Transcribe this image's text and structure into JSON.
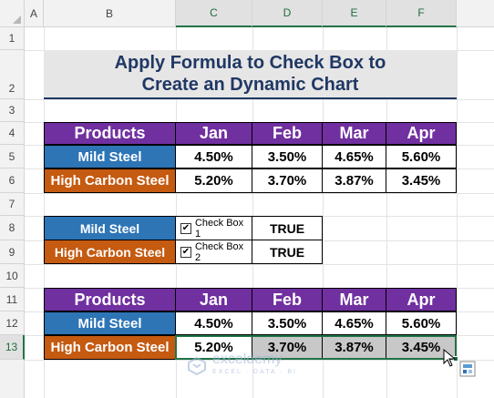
{
  "columns": [
    "A",
    "B",
    "C",
    "D",
    "E",
    "F"
  ],
  "rows": [
    "1",
    "2",
    "3",
    "4",
    "5",
    "6",
    "7",
    "8",
    "9",
    "10",
    "11",
    "12",
    "13"
  ],
  "title": {
    "line1": "Apply Formula to Check Box to",
    "line2": "Create an Dynamic Chart"
  },
  "table1": {
    "headers": [
      "Products",
      "Jan",
      "Feb",
      "Mar",
      "Apr"
    ],
    "rows": [
      {
        "product": "Mild Steel",
        "values": [
          "4.50%",
          "3.50%",
          "4.65%",
          "5.60%"
        ]
      },
      {
        "product": "High Carbon Steel",
        "values": [
          "5.20%",
          "3.70%",
          "3.87%",
          "3.45%"
        ]
      }
    ]
  },
  "checkboxes": [
    {
      "product": "Mild Steel",
      "label": "Check Box 1",
      "checked": "✔",
      "value": "TRUE"
    },
    {
      "product": "High Carbon Steel",
      "label": "Check Box 2",
      "checked": "✔",
      "value": "TRUE"
    }
  ],
  "table2": {
    "headers": [
      "Products",
      "Jan",
      "Feb",
      "Mar",
      "Apr"
    ],
    "rows": [
      {
        "product": "Mild Steel",
        "values": [
          "4.50%",
          "3.50%",
          "4.65%",
          "5.60%"
        ]
      },
      {
        "product": "High Carbon Steel",
        "values": [
          "5.20%",
          "3.70%",
          "3.87%",
          "3.45%"
        ]
      }
    ]
  },
  "watermark": {
    "name": "exceldemy",
    "tagline": "EXCEL · DATA · BI"
  },
  "colors": {
    "header": "#7030a0",
    "mild": "#2e75b6",
    "high": "#c55a11",
    "title": "#1f3864",
    "selection": "#217346"
  }
}
